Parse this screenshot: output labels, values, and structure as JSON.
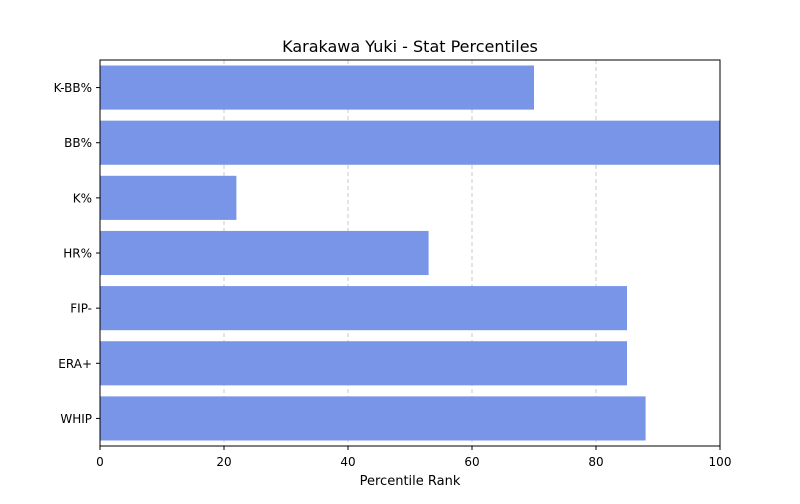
{
  "chart_data": {
    "type": "bar",
    "orientation": "horizontal",
    "title": "Karakawa Yuki - Stat Percentiles",
    "xlabel": "Percentile Rank",
    "ylabel": "",
    "categories": [
      "K-BB%",
      "BB%",
      "K%",
      "HR%",
      "FIP-",
      "ERA+",
      "WHIP"
    ],
    "values": [
      70,
      100,
      22,
      53,
      85,
      85,
      88
    ],
    "xlim": [
      0,
      100
    ],
    "xticks": [
      0,
      20,
      40,
      60,
      80,
      100
    ],
    "grid": "vertical dashed",
    "bar_color": "#7895e8",
    "grid_color": "#c8c8c8"
  }
}
